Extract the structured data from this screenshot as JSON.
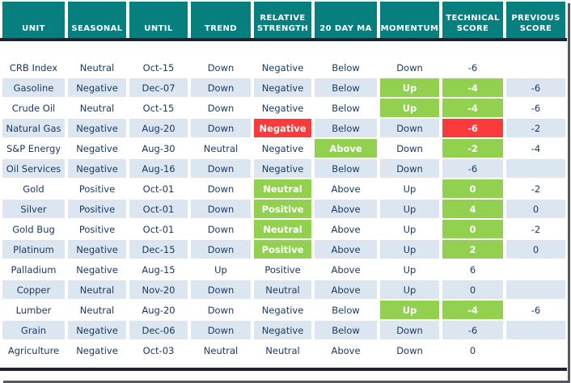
{
  "chart_data": {
    "type": "table",
    "title": "Commodity seasonal / technical score table",
    "columns": [
      "UNIT",
      "SEASONAL",
      "UNTIL",
      "TREND",
      "RELATIVE STRENGTH",
      "20 DAY MA",
      "MOMENTUM",
      "TECHNICAL SCORE",
      "PREVIOUS SCORE"
    ],
    "rows": [
      {
        "cells": [
          {
            "t": "CRB Index"
          },
          {
            "t": "Neutral"
          },
          {
            "t": "Oct-15"
          },
          {
            "t": "Down"
          },
          {
            "t": "Negative"
          },
          {
            "t": "Below"
          },
          {
            "t": "Down"
          },
          {
            "t": "-6"
          },
          {
            "t": ""
          }
        ]
      },
      {
        "cells": [
          {
            "t": "Gasoline"
          },
          {
            "t": "Negative"
          },
          {
            "t": "Dec-07"
          },
          {
            "t": "Down"
          },
          {
            "t": "Negative"
          },
          {
            "t": "Below"
          },
          {
            "t": "Up",
            "hl": "green"
          },
          {
            "t": "-4",
            "hl": "green"
          },
          {
            "t": "-6"
          }
        ]
      },
      {
        "cells": [
          {
            "t": "Crude Oil"
          },
          {
            "t": "Neutral"
          },
          {
            "t": "Oct-15"
          },
          {
            "t": "Down"
          },
          {
            "t": "Negative"
          },
          {
            "t": "Below"
          },
          {
            "t": "Up",
            "hl": "green"
          },
          {
            "t": "-4",
            "hl": "green"
          },
          {
            "t": "-6"
          }
        ]
      },
      {
        "cells": [
          {
            "t": "Natural Gas"
          },
          {
            "t": "Negative"
          },
          {
            "t": "Aug-20"
          },
          {
            "t": "Down"
          },
          {
            "t": "Negative",
            "hl": "red"
          },
          {
            "t": "Below"
          },
          {
            "t": "Down"
          },
          {
            "t": "-6",
            "hl": "red"
          },
          {
            "t": "-2"
          }
        ]
      },
      {
        "cells": [
          {
            "t": "S&P Energy"
          },
          {
            "t": "Negative"
          },
          {
            "t": "Aug-30"
          },
          {
            "t": "Neutral"
          },
          {
            "t": "Negative"
          },
          {
            "t": "Above",
            "hl": "green"
          },
          {
            "t": "Down"
          },
          {
            "t": "-2",
            "hl": "green"
          },
          {
            "t": "-4"
          }
        ]
      },
      {
        "cells": [
          {
            "t": "Oil Services"
          },
          {
            "t": "Negative"
          },
          {
            "t": "Aug-16"
          },
          {
            "t": "Down"
          },
          {
            "t": "Negative"
          },
          {
            "t": "Below"
          },
          {
            "t": "Down"
          },
          {
            "t": "-6"
          },
          {
            "t": ""
          }
        ]
      },
      {
        "cells": [
          {
            "t": "Gold"
          },
          {
            "t": "Positive"
          },
          {
            "t": "Oct-01"
          },
          {
            "t": "Down"
          },
          {
            "t": "Neutral",
            "hl": "green"
          },
          {
            "t": "Above"
          },
          {
            "t": "Up"
          },
          {
            "t": "0",
            "hl": "green"
          },
          {
            "t": "-2"
          }
        ]
      },
      {
        "cells": [
          {
            "t": "Silver"
          },
          {
            "t": "Positive"
          },
          {
            "t": "Oct-01"
          },
          {
            "t": "Down"
          },
          {
            "t": "Positive",
            "hl": "green"
          },
          {
            "t": "Above"
          },
          {
            "t": "Up"
          },
          {
            "t": "4",
            "hl": "green"
          },
          {
            "t": "0"
          }
        ]
      },
      {
        "cells": [
          {
            "t": "Gold Bug"
          },
          {
            "t": "Positive"
          },
          {
            "t": "Oct-01"
          },
          {
            "t": "Down"
          },
          {
            "t": "Neutral",
            "hl": "green"
          },
          {
            "t": "Above"
          },
          {
            "t": "Up"
          },
          {
            "t": "0",
            "hl": "green"
          },
          {
            "t": "-2"
          }
        ]
      },
      {
        "cells": [
          {
            "t": "Platinum"
          },
          {
            "t": "Negative"
          },
          {
            "t": "Dec-15"
          },
          {
            "t": "Down"
          },
          {
            "t": "Positive",
            "hl": "green"
          },
          {
            "t": "Above"
          },
          {
            "t": "Up"
          },
          {
            "t": "2",
            "hl": "green"
          },
          {
            "t": "0"
          }
        ]
      },
      {
        "cells": [
          {
            "t": "Palladium"
          },
          {
            "t": "Negative"
          },
          {
            "t": "Aug-15"
          },
          {
            "t": "Up"
          },
          {
            "t": "Positive"
          },
          {
            "t": "Above"
          },
          {
            "t": "Up"
          },
          {
            "t": "6"
          },
          {
            "t": ""
          }
        ]
      },
      {
        "cells": [
          {
            "t": "Copper"
          },
          {
            "t": "Neutral"
          },
          {
            "t": "Nov-20"
          },
          {
            "t": "Down"
          },
          {
            "t": "Neutral"
          },
          {
            "t": "Above"
          },
          {
            "t": "Up"
          },
          {
            "t": "0"
          },
          {
            "t": ""
          }
        ]
      },
      {
        "cells": [
          {
            "t": "Lumber"
          },
          {
            "t": "Neutral"
          },
          {
            "t": "Aug-20"
          },
          {
            "t": "Down"
          },
          {
            "t": "Negative"
          },
          {
            "t": "Below"
          },
          {
            "t": "Up",
            "hl": "green"
          },
          {
            "t": "-4",
            "hl": "green"
          },
          {
            "t": "-6"
          }
        ]
      },
      {
        "cells": [
          {
            "t": "Grain"
          },
          {
            "t": "Negative"
          },
          {
            "t": "Dec-06"
          },
          {
            "t": "Down"
          },
          {
            "t": "Negative"
          },
          {
            "t": "Below"
          },
          {
            "t": "Down"
          },
          {
            "t": "-6"
          },
          {
            "t": ""
          }
        ]
      },
      {
        "cells": [
          {
            "t": "Agriculture"
          },
          {
            "t": "Negative"
          },
          {
            "t": "Oct-03"
          },
          {
            "t": "Neutral"
          },
          {
            "t": "Neutral"
          },
          {
            "t": "Above"
          },
          {
            "t": "Down"
          },
          {
            "t": "0"
          },
          {
            "t": ""
          }
        ]
      }
    ],
    "legend_colors": {
      "green_highlight": "#92D050",
      "red_highlight": "#FB3B3B"
    }
  },
  "colors": {
    "header_bg": "#077F7F",
    "header_text": "#FFFFFF",
    "row_alt_bg": "#DCE6F1",
    "body_text": "#1B3A63",
    "green": "#92D050",
    "red": "#FB3B3B",
    "divider_line": "#1D2130",
    "frame_shadow": "#55585C"
  }
}
